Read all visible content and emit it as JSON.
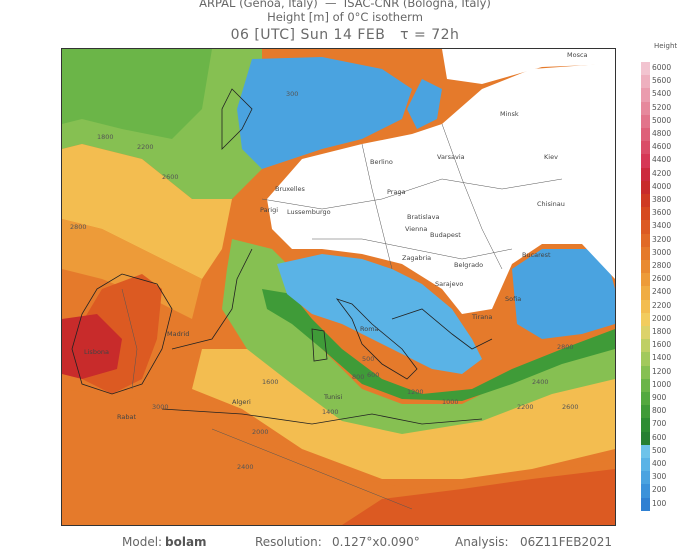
{
  "header": {
    "line1": "ARPAL (Genoa, Italy)  —  ISAC-CNR (Bologna, Italy)",
    "line2": "Height [m] of 0°C isotherm",
    "line3": "06 [UTC] Sun 14 FEB   τ = 72h"
  },
  "legend": {
    "title": "Height",
    "levels": [
      {
        "label": "6000",
        "color": "#f2c4d0"
      },
      {
        "label": "5600",
        "color": "#eeb0bf"
      },
      {
        "label": "5400",
        "color": "#ea9cae"
      },
      {
        "label": "5200",
        "color": "#e6889c"
      },
      {
        "label": "5000",
        "color": "#e2748b"
      },
      {
        "label": "4800",
        "color": "#de6079"
      },
      {
        "label": "4600",
        "color": "#da4c68"
      },
      {
        "label": "4400",
        "color": "#d63856"
      },
      {
        "label": "4200",
        "color": "#cc2a3e"
      },
      {
        "label": "4000",
        "color": "#c82b2b"
      },
      {
        "label": "3800",
        "color": "#cf3a22"
      },
      {
        "label": "3600",
        "color": "#d6491f"
      },
      {
        "label": "3400",
        "color": "#dc5a22"
      },
      {
        "label": "3200",
        "color": "#e16a26"
      },
      {
        "label": "3000",
        "color": "#e57a2b"
      },
      {
        "label": "2800",
        "color": "#e98a31"
      },
      {
        "label": "2600",
        "color": "#ed9b39"
      },
      {
        "label": "2400",
        "color": "#f0ac43"
      },
      {
        "label": "2200",
        "color": "#f3bd50"
      },
      {
        "label": "2000",
        "color": "#f2cc5e"
      },
      {
        "label": "1800",
        "color": "#dcd26a"
      },
      {
        "label": "1600",
        "color": "#bfcf64"
      },
      {
        "label": "1400",
        "color": "#a2c95c"
      },
      {
        "label": "1200",
        "color": "#86c052"
      },
      {
        "label": "1000",
        "color": "#6bb548"
      },
      {
        "label": "900",
        "color": "#53a93f"
      },
      {
        "label": "800",
        "color": "#3f9b38"
      },
      {
        "label": "700",
        "color": "#2e8d33"
      },
      {
        "label": "600",
        "color": "#268032"
      },
      {
        "label": "500",
        "color": "#6ec3ea"
      },
      {
        "label": "400",
        "color": "#5ab3e6"
      },
      {
        "label": "300",
        "color": "#4aa3e0"
      },
      {
        "label": "200",
        "color": "#3b92da"
      },
      {
        "label": "100",
        "color": "#2f80d2"
      }
    ]
  },
  "map": {
    "cities": [
      "Mosca",
      "Minsk",
      "Varsavia",
      "Kiev",
      "Berlino",
      "Bruxelles",
      "Parigi",
      "Lussemburgo",
      "Praga",
      "Bratislava",
      "Vienna",
      "Budapest",
      "Chisinau",
      "Bucarest",
      "Belgrado",
      "Zagabria",
      "Sarajevo",
      "Sofia",
      "Tirana",
      "Lisbona",
      "Madrid",
      "Rabat",
      "Algeri",
      "Tunisi",
      "Roma"
    ],
    "contour_labels": [
      "1800",
      "2200",
      "2600",
      "2800",
      "3000",
      "2400",
      "2000",
      "1600",
      "1400",
      "1200",
      "1000",
      "800",
      "500",
      "300",
      "600",
      "2800",
      "2600",
      "2400",
      "2200"
    ]
  },
  "footer": {
    "model_label": "Model:",
    "model_value": "bolam",
    "resolution_label": "Resolution:",
    "resolution_value": "0.127°x0.090°",
    "analysis_label": "Analysis:",
    "analysis_value": "06Z11FEB2021"
  }
}
